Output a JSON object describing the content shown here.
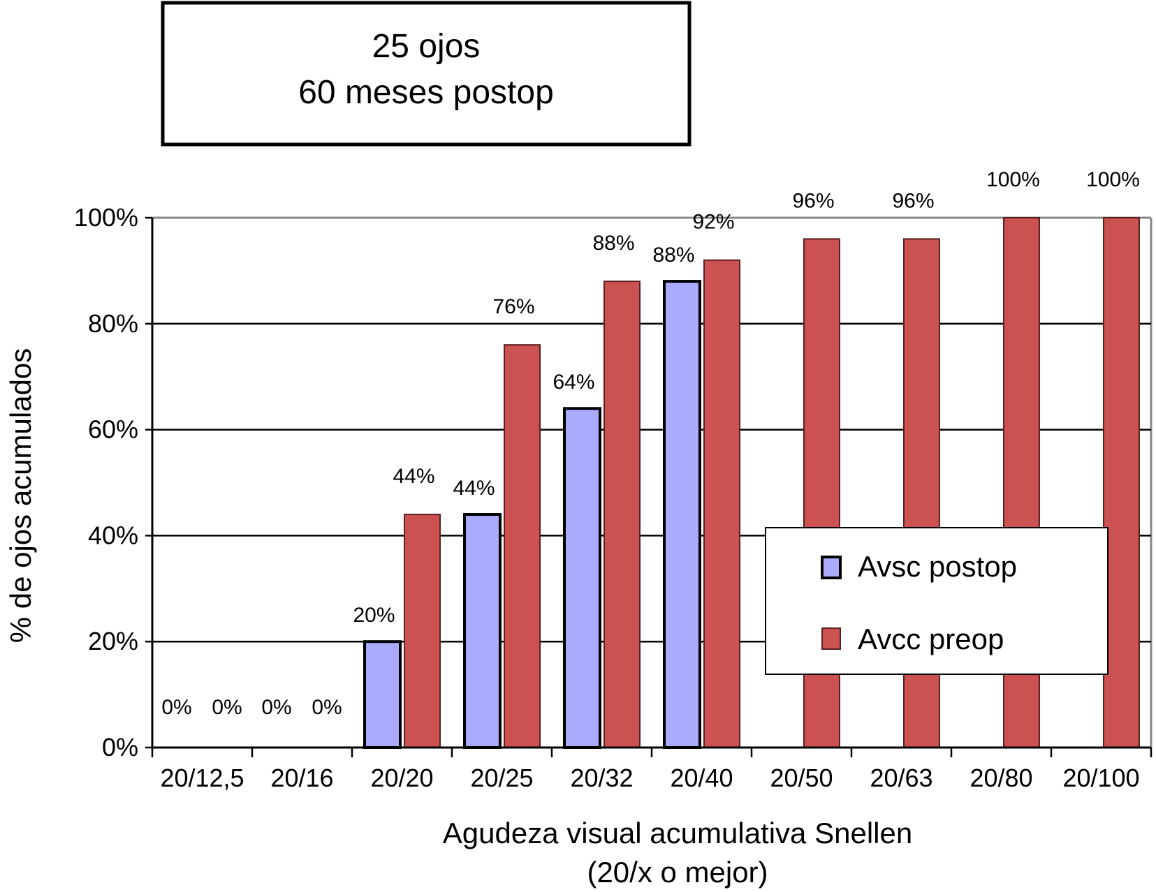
{
  "header_box": {
    "line1": "25 ojos",
    "line2": "60 meses postop"
  },
  "chart_data": {
    "type": "bar",
    "categories": [
      "20/12,5",
      "20/16",
      "20/20",
      "20/25",
      "20/32",
      "20/40",
      "20/50",
      "20/63",
      "20/80",
      "20/100"
    ],
    "series": [
      {
        "name": "Avsc postop",
        "values": [
          0,
          0,
          20,
          44,
          64,
          88,
          null,
          null,
          null,
          null
        ],
        "color": "#aaaaff"
      },
      {
        "name": "Avcc preop",
        "values": [
          null,
          null,
          44,
          76,
          88,
          92,
          96,
          96,
          100,
          100
        ],
        "color": "#cc5151"
      }
    ],
    "data_labels": {
      "Avsc postop": [
        "0%",
        "0%",
        "20%",
        "44%",
        "64%",
        "88%",
        "",
        "",
        "",
        ""
      ],
      "Avcc preop": [
        "0%",
        "0%",
        "44%",
        "76%",
        "88%",
        "92%",
        "96%",
        "96%",
        "100%",
        "100%"
      ]
    },
    "ylabel": "% de ojos acumulados",
    "xlabel_line1": "Agudeza visual acumulativa Snellen",
    "xlabel_line2": "(20/x o mejor)",
    "ylim": [
      0,
      100
    ],
    "yticks": [
      "0%",
      "20%",
      "40%",
      "60%",
      "80%",
      "100%"
    ],
    "grid": true,
    "legend_position": "lower-right"
  }
}
